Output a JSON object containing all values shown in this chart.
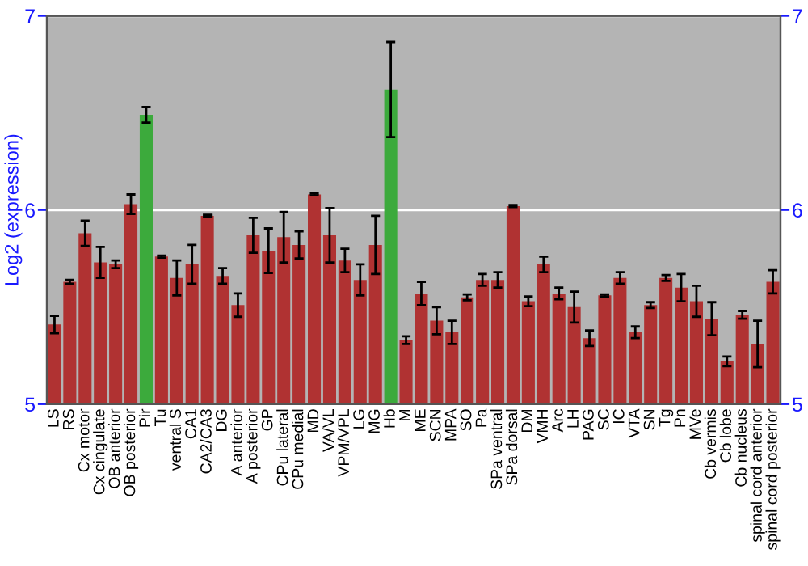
{
  "chart_data": {
    "type": "bar",
    "ylabel": "Log2 (expression)",
    "categories": [
      "LS",
      "RS",
      "Cx motor",
      "Cx cingulate",
      "OB anterior",
      "OB posterior",
      "Pir",
      "Tu",
      "ventral S",
      "CA1",
      "CA2/CA3",
      "DG",
      "A anterior",
      "A posterior",
      "GP",
      "CPu lateral",
      "CPu medial",
      "MD",
      "VA/VL",
      "VPM/VPL",
      "LG",
      "MG",
      "Hb",
      "M",
      "ME",
      "SCN",
      "MPA",
      "SO",
      "Pa",
      "SPa ventral",
      "SPa dorsal",
      "DM",
      "VMH",
      "Arc",
      "LH",
      "PAG",
      "SC",
      "IC",
      "VTA",
      "SN",
      "Tg",
      "Pn",
      "MVe",
      "Cb vermis",
      "Cb lobe",
      "Cb nucleus",
      "spinal cord anterior",
      "spinal cord posterior"
    ],
    "values": [
      5.41,
      5.63,
      5.88,
      5.73,
      5.72,
      6.03,
      6.49,
      5.76,
      5.65,
      5.72,
      5.97,
      5.66,
      5.51,
      5.87,
      5.79,
      5.86,
      5.82,
      6.08,
      5.87,
      5.74,
      5.64,
      5.82,
      6.62,
      5.33,
      5.57,
      5.43,
      5.37,
      5.55,
      5.64,
      5.64,
      6.02,
      5.53,
      5.72,
      5.57,
      5.5,
      5.34,
      5.56,
      5.65,
      5.37,
      5.51,
      5.65,
      5.6,
      5.53,
      5.44,
      5.22,
      5.46,
      5.31,
      5.63
    ],
    "errors": [
      0.045,
      0.01,
      0.065,
      0.08,
      0.02,
      0.05,
      0.04,
      0.005,
      0.09,
      0.1,
      0.005,
      0.04,
      0.06,
      0.09,
      0.115,
      0.13,
      0.07,
      0.005,
      0.14,
      0.06,
      0.08,
      0.15,
      0.245,
      0.02,
      0.06,
      0.07,
      0.06,
      0.015,
      0.03,
      0.04,
      0.005,
      0.025,
      0.04,
      0.03,
      0.08,
      0.04,
      0.005,
      0.03,
      0.03,
      0.015,
      0.015,
      0.07,
      0.08,
      0.085,
      0.025,
      0.02,
      0.12,
      0.06
    ],
    "colors": [
      "#b03232",
      "#b03232",
      "#b03232",
      "#b03232",
      "#b03232",
      "#b03232",
      "#3caa3c",
      "#b03232",
      "#b03232",
      "#b03232",
      "#b03232",
      "#b03232",
      "#b03232",
      "#b03232",
      "#b03232",
      "#b03232",
      "#b03232",
      "#b03232",
      "#b03232",
      "#b03232",
      "#b03232",
      "#b03232",
      "#3caa3c",
      "#b03232",
      "#b03232",
      "#b03232",
      "#b03232",
      "#b03232",
      "#b03232",
      "#b03232",
      "#b03232",
      "#b03232",
      "#b03232",
      "#b03232",
      "#b03232",
      "#b03232",
      "#b03232",
      "#b03232",
      "#b03232",
      "#b03232",
      "#b03232",
      "#b03232",
      "#b03232",
      "#b03232",
      "#b03232",
      "#b03232",
      "#b03232",
      "#b03232"
    ],
    "ylim": [
      5,
      7
    ],
    "yticks": [
      5,
      6,
      7
    ],
    "y2lim": [
      5,
      7
    ],
    "y2ticks": [
      5,
      6,
      7
    ],
    "grid": "y"
  }
}
